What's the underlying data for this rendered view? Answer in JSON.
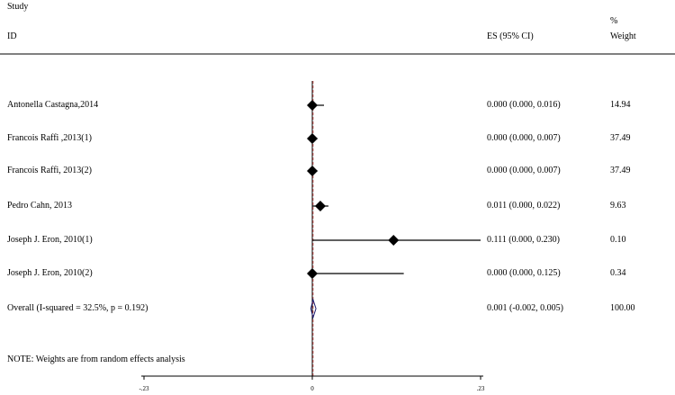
{
  "header": {
    "study": "Study",
    "id": "ID",
    "es": "ES (95% CI)",
    "weight_pct": "%",
    "weight": "Weight"
  },
  "note": "NOTE: Weights are from random effects analysis",
  "chart_data": {
    "type": "forest",
    "xlim": [
      -0.23,
      0.23
    ],
    "ticks": [
      {
        "value": -0.23,
        "label": "-.23"
      },
      {
        "value": 0,
        "label": "0"
      },
      {
        "value": 0.23,
        "label": ".23"
      }
    ],
    "null_line": 0,
    "overall_line": 0.001,
    "studies": [
      {
        "id": "Antonella Castagna,2014",
        "es": 0.0,
        "lo": 0.0,
        "hi": 0.016,
        "ci_text": "0.000 (0.000, 0.016)",
        "weight": "14.94"
      },
      {
        "id": "Francois Raffi ,2013(1)",
        "es": 0.0,
        "lo": 0.0,
        "hi": 0.007,
        "ci_text": "0.000 (0.000, 0.007)",
        "weight": "37.49"
      },
      {
        "id": "Francois Raffi, 2013(2)",
        "es": 0.0,
        "lo": 0.0,
        "hi": 0.007,
        "ci_text": "0.000 (0.000, 0.007)",
        "weight": "37.49"
      },
      {
        "id": "Pedro Cahn, 2013",
        "es": 0.011,
        "lo": 0.0,
        "hi": 0.022,
        "ci_text": "0.011 (0.000, 0.022)",
        "weight": "9.63"
      },
      {
        "id": "Joseph J. Eron, 2010(1)",
        "es": 0.111,
        "lo": 0.0,
        "hi": 0.23,
        "ci_text": "0.111 (0.000, 0.230)",
        "weight": "0.10"
      },
      {
        "id": "Joseph J. Eron, 2010(2)",
        "es": 0.0,
        "lo": 0.0,
        "hi": 0.125,
        "ci_text": "0.000 (0.000, 0.125)",
        "weight": "0.34"
      }
    ],
    "overall": {
      "id": "Overall  (I-squared = 32.5%, p = 0.192)",
      "es": 0.001,
      "lo": -0.002,
      "hi": 0.005,
      "ci_text": "0.001 (-0.002, 0.005)",
      "weight": "100.00"
    },
    "colors": {
      "marker": "#000000",
      "diamond": "#1a1a6e",
      "null_line": "#000000",
      "overall_line": "#c0504d"
    }
  }
}
